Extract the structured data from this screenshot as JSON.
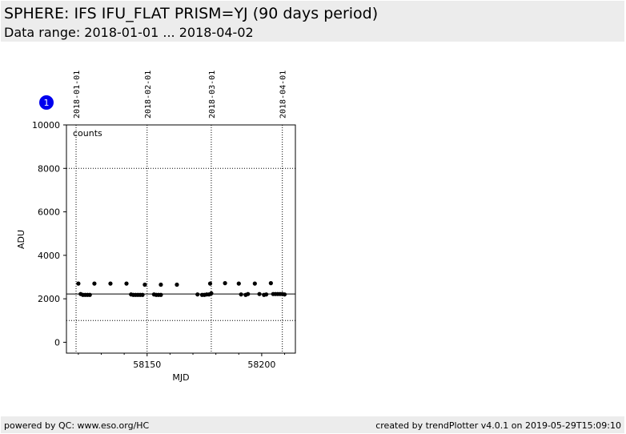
{
  "header": {
    "title": "SPHERE: IFS IFU_FLAT PRISM=YJ (90 days period)",
    "subtitle": "Data range: 2018-01-01 ... 2018-04-02"
  },
  "footer": {
    "left": "powered by QC: www.eso.org/HC",
    "right": "created by trendPlotter v4.0.1 on 2019-05-29T15:09:10"
  },
  "panel_badge": "1",
  "colors": {
    "badge": "#0000ee",
    "points": "#000000",
    "header_bg": "#ececec"
  },
  "chart_data": {
    "type": "scatter",
    "xlabel": "MJD",
    "ylabel": "ADU",
    "annotation": "counts",
    "xlim": [
      58114.8,
      58214.7
    ],
    "ylim": [
      -500,
      10000
    ],
    "x_ticks": [
      58150,
      58200
    ],
    "y_ticks": [
      0,
      2000,
      4000,
      6000,
      8000,
      10000
    ],
    "top_date_ticks": [
      {
        "mjd": 58119,
        "label": "2018-01-01"
      },
      {
        "mjd": 58150,
        "label": "2018-02-01"
      },
      {
        "mjd": 58178,
        "label": "2018-03-01"
      },
      {
        "mjd": 58209,
        "label": "2018-04-01"
      }
    ],
    "reference_lines": {
      "solid": [
        2220
      ],
      "dotted": [
        8000,
        1000
      ]
    },
    "points": {
      "x": [
        58120,
        58121,
        58122,
        58123,
        58124,
        58125,
        58127,
        58134,
        58141,
        58143,
        58144,
        58145,
        58146,
        58147,
        58148,
        58149,
        58153,
        58154,
        58155,
        58156,
        58156,
        58163,
        58172,
        58174,
        58175,
        58176,
        58177,
        58177.5,
        58178,
        58184,
        58190,
        58191,
        58193,
        58194,
        58197,
        58199,
        58201,
        58202,
        58204,
        58205,
        58206,
        58207,
        58208,
        58209,
        58210
      ],
      "y": [
        2700,
        2220,
        2180,
        2180,
        2180,
        2180,
        2700,
        2700,
        2700,
        2200,
        2180,
        2180,
        2180,
        2180,
        2180,
        2650,
        2200,
        2180,
        2180,
        2180,
        2650,
        2650,
        2200,
        2180,
        2180,
        2200,
        2200,
        2700,
        2250,
        2720,
        2700,
        2200,
        2180,
        2220,
        2700,
        2220,
        2180,
        2200,
        2720,
        2220,
        2220,
        2220,
        2220,
        2220,
        2200
      ]
    }
  }
}
